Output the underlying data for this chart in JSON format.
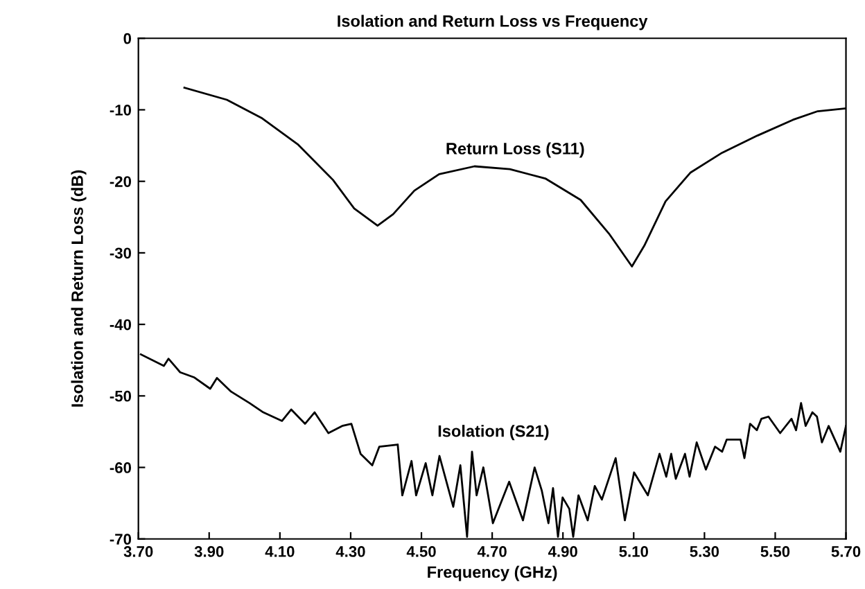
{
  "chart_data": {
    "type": "line",
    "title": "Isolation and Return Loss vs Frequency",
    "xlabel": "Frequency (GHz)",
    "ylabel": "Isolation and Return Loss (dB)",
    "xlim": [
      3.7,
      5.7
    ],
    "xticks": [
      {
        "value": 3.7,
        "label": "3.70"
      },
      {
        "value": 3.9,
        "label": "3.90"
      },
      {
        "value": 4.1,
        "label": "4.10"
      },
      {
        "value": 4.3,
        "label": "4.30"
      },
      {
        "value": 4.5,
        "label": "4.50"
      },
      {
        "value": 4.7,
        "label": "4.70"
      },
      {
        "value": 4.9,
        "label": "4.90"
      },
      {
        "value": 5.1,
        "label": "5.10"
      },
      {
        "value": 5.3,
        "label": "5.30"
      },
      {
        "value": 5.5,
        "label": "5.50"
      },
      {
        "value": 5.7,
        "label": "5.70"
      }
    ],
    "ylim": [
      -70,
      0
    ],
    "yticks": [
      -70,
      -60,
      -50,
      -40,
      -30,
      -20,
      -10,
      0
    ],
    "grid": false,
    "marker": "none",
    "line_style": "solid",
    "series": [
      {
        "name": "Return Loss (S11)",
        "color": "#000000",
        "x": [
          3.83,
          3.95,
          4.05,
          4.15,
          4.25,
          4.31,
          4.376,
          4.42,
          4.48,
          4.55,
          4.65,
          4.75,
          4.85,
          4.95,
          5.03,
          5.095,
          5.13,
          5.19,
          5.26,
          5.35,
          5.45,
          5.55,
          5.62,
          5.7
        ],
        "values": [
          -6.9,
          -8.6,
          -11.2,
          -14.8,
          -19.8,
          -23.8,
          -26.2,
          -24.6,
          -21.3,
          -19.0,
          -17.9,
          -18.3,
          -19.6,
          -22.6,
          -27.3,
          -31.9,
          -29.0,
          -22.8,
          -18.8,
          -16.0,
          -13.6,
          -11.4,
          -10.2,
          -9.8
        ]
      },
      {
        "name": "Isolation (S21)",
        "color": "#000000",
        "x": [
          3.707,
          3.772,
          3.785,
          3.818,
          3.857,
          3.903,
          3.922,
          3.962,
          4.014,
          4.053,
          4.106,
          4.132,
          4.171,
          4.198,
          4.237,
          4.276,
          4.302,
          4.328,
          4.361,
          4.381,
          4.433,
          4.446,
          4.472,
          4.485,
          4.512,
          4.531,
          4.551,
          4.59,
          4.61,
          4.629,
          4.643,
          4.656,
          4.675,
          4.702,
          4.748,
          4.787,
          4.82,
          4.84,
          4.859,
          4.872,
          4.886,
          4.899,
          4.918,
          4.929,
          4.944,
          4.97,
          4.99,
          5.01,
          5.049,
          5.075,
          5.101,
          5.14,
          5.173,
          5.192,
          5.206,
          5.219,
          5.245,
          5.258,
          5.278,
          5.304,
          5.33,
          5.35,
          5.363,
          5.402,
          5.413,
          5.429,
          5.448,
          5.461,
          5.481,
          5.514,
          5.546,
          5.559,
          5.573,
          5.586,
          5.605,
          5.618,
          5.632,
          5.651,
          5.684,
          5.7
        ],
        "values": [
          -44.2,
          -45.8,
          -44.8,
          -46.7,
          -47.4,
          -49.0,
          -47.5,
          -49.4,
          -51.0,
          -52.3,
          -53.5,
          -51.9,
          -53.9,
          -52.3,
          -55.2,
          -54.2,
          -53.9,
          -58.1,
          -59.7,
          -57.1,
          -56.8,
          -63.9,
          -59.1,
          -63.9,
          -59.4,
          -63.9,
          -58.4,
          -65.5,
          -59.7,
          -69.7,
          -57.8,
          -63.9,
          -60.0,
          -67.8,
          -62.0,
          -67.4,
          -60.0,
          -63.2,
          -67.8,
          -62.9,
          -69.7,
          -64.2,
          -65.8,
          -69.7,
          -63.9,
          -67.4,
          -62.6,
          -64.5,
          -58.7,
          -67.4,
          -60.7,
          -63.9,
          -58.1,
          -61.3,
          -58.1,
          -61.6,
          -58.1,
          -61.3,
          -56.5,
          -60.3,
          -57.1,
          -57.8,
          -56.1,
          -56.1,
          -58.7,
          -53.9,
          -54.8,
          -53.2,
          -52.9,
          -55.2,
          -53.2,
          -54.8,
          -51.0,
          -54.2,
          -52.3,
          -52.9,
          -56.5,
          -54.2,
          -57.8,
          -54.2
        ]
      }
    ]
  }
}
